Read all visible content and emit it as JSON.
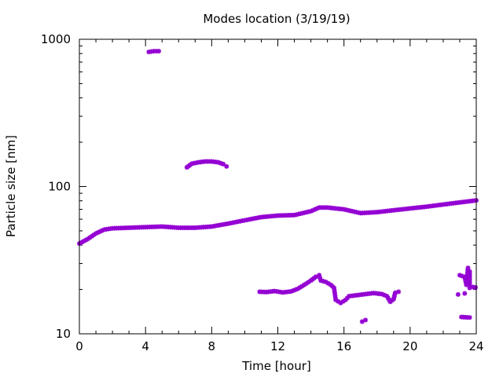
{
  "chart_data": {
    "type": "scatter",
    "title": "Modes location (3/19/19)",
    "xlabel": "Time [hour]",
    "ylabel": "Particle size [nm]",
    "xlim": [
      0,
      24
    ],
    "ylim": [
      10,
      1000
    ],
    "yscale": "log",
    "grid": false,
    "legend": "none",
    "x_ticks": [
      0,
      4,
      8,
      12,
      16,
      20,
      24
    ],
    "x_tick_labels": [
      "0",
      "4",
      "8",
      "12",
      "16",
      "20",
      "24"
    ],
    "y_ticks": [
      10,
      100,
      1000
    ],
    "y_tick_labels": [
      "10",
      "100",
      "1000"
    ],
    "marker": "star",
    "color": "#9400d3",
    "series": [
      {
        "points": [
          [
            0.0,
            41
          ],
          [
            0.5,
            44
          ],
          [
            1.0,
            48
          ],
          [
            1.5,
            51
          ],
          [
            2.0,
            52
          ],
          [
            3.0,
            52.5
          ],
          [
            4.0,
            53
          ],
          [
            5.0,
            53.5
          ],
          [
            6.0,
            52.5
          ],
          [
            7.0,
            52.5
          ],
          [
            8.0,
            53.5
          ],
          [
            9.0,
            56
          ],
          [
            10.0,
            59
          ],
          [
            11.0,
            62
          ],
          [
            12.0,
            63.5
          ],
          [
            13.0,
            64
          ],
          [
            14.0,
            68
          ],
          [
            14.5,
            72
          ],
          [
            15.0,
            72
          ],
          [
            16.0,
            70
          ],
          [
            17.0,
            66
          ],
          [
            18.0,
            67
          ],
          [
            19.0,
            69
          ],
          [
            20.0,
            71
          ],
          [
            21.0,
            73
          ],
          [
            22.0,
            75.5
          ],
          [
            23.0,
            78
          ],
          [
            24.0,
            80.5
          ]
        ]
      },
      {
        "points": [
          [
            4.2,
            820
          ],
          [
            4.5,
            830
          ],
          [
            4.8,
            830
          ]
        ]
      },
      {
        "points": [
          [
            6.5,
            135
          ],
          [
            6.8,
            143
          ],
          [
            7.2,
            146
          ],
          [
            7.6,
            148
          ],
          [
            8.0,
            148
          ],
          [
            8.4,
            146
          ],
          [
            8.7,
            142
          ],
          [
            8.9,
            137
          ]
        ]
      },
      {
        "points": [
          [
            10.9,
            19.3
          ],
          [
            11.3,
            19.2
          ],
          [
            11.8,
            19.5
          ],
          [
            12.3,
            19.1
          ],
          [
            12.8,
            19.4
          ],
          [
            13.2,
            20.2
          ],
          [
            13.6,
            21.5
          ],
          [
            14.0,
            23.0
          ],
          [
            14.3,
            24.4
          ],
          [
            14.5,
            25.0
          ],
          [
            14.6,
            23.0
          ],
          [
            14.9,
            22.5
          ],
          [
            15.2,
            21.5
          ],
          [
            15.4,
            20.5
          ],
          [
            15.5,
            17.0
          ],
          [
            15.8,
            16.2
          ],
          [
            16.1,
            17.0
          ],
          [
            16.3,
            18.0
          ],
          [
            16.8,
            18.3
          ],
          [
            17.3,
            18.6
          ],
          [
            17.8,
            18.9
          ],
          [
            18.3,
            18.6
          ],
          [
            18.6,
            18.0
          ],
          [
            18.8,
            16.5
          ],
          [
            19.0,
            17.2
          ],
          [
            19.1,
            19.0
          ],
          [
            19.3,
            19.3
          ]
        ]
      },
      {
        "points": [
          [
            17.1,
            12.1
          ],
          [
            17.3,
            12.4
          ]
        ]
      },
      {
        "points": [
          [
            22.9,
            18.5
          ],
          [
            23.0,
            25.0
          ],
          [
            23.3,
            24.3
          ],
          [
            23.4,
            21.5
          ],
          [
            23.5,
            28.0
          ],
          [
            23.6,
            26.5
          ],
          [
            23.6,
            20.5
          ],
          [
            23.8,
            20.8
          ],
          [
            23.95,
            20.6
          ],
          [
            23.1,
            13.0
          ],
          [
            23.6,
            12.9
          ],
          [
            23.3,
            18.8
          ]
        ]
      }
    ]
  }
}
